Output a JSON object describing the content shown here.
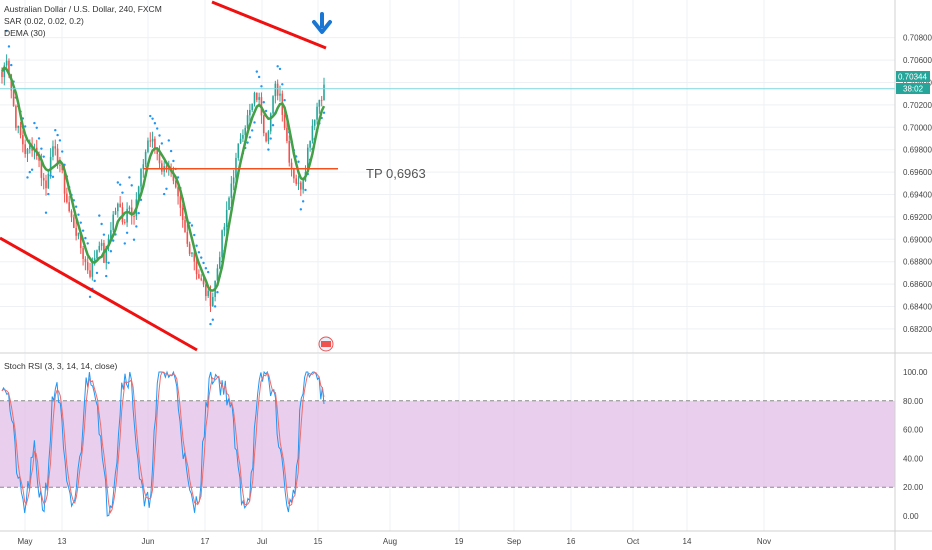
{
  "legend": {
    "symbol": "Australian Dollar / U.S. Dollar, 240, FXCM",
    "sar": "SAR (0.02, 0.02, 0.2)",
    "dema": "DEMA (30)",
    "rsi": "Stoch RSI (3, 3, 14, 14, close)"
  },
  "price_badge": {
    "value": "0.70344",
    "countdown": "38:02"
  },
  "annotation": "TP 0,6963",
  "colors": {
    "up": "#26a69a",
    "down": "#ef5350",
    "sar": "#2196f3",
    "dema": "#43a047",
    "trend": "#f01010",
    "tp_line": "#f4511e",
    "price_line": "#7fd6dc",
    "k": "#2196f3",
    "d": "#ef6c6c",
    "band": "#e1bee7",
    "arrow": "#1976d2"
  },
  "chart_data": [
    {
      "type": "candlestick",
      "yaxis": [
        "0.70800",
        "0.70600",
        "0.70400",
        "0.70200",
        "0.70000",
        "0.69800",
        "0.69600",
        "0.69400",
        "0.69200",
        "0.69000",
        "0.68800",
        "0.68600",
        "0.68400",
        "0.68200"
      ],
      "ylim": [
        0.6811,
        0.7094
      ],
      "xaxis": [
        "May",
        "13",
        "Jun",
        "17",
        "Jul",
        "15",
        "Aug",
        "19",
        "Sep",
        "16",
        "Oct",
        "14",
        "Nov"
      ],
      "price_path": [
        0.7045,
        0.7065,
        0.703,
        0.7,
        0.699,
        0.6975,
        0.6985,
        0.698,
        0.696,
        0.6945,
        0.698,
        0.6975,
        0.6965,
        0.694,
        0.692,
        0.691,
        0.6895,
        0.688,
        0.687,
        0.6885,
        0.69,
        0.688,
        0.6905,
        0.6925,
        0.693,
        0.6915,
        0.6935,
        0.692,
        0.6945,
        0.697,
        0.699,
        0.6985,
        0.6975,
        0.696,
        0.697,
        0.695,
        0.6935,
        0.6915,
        0.6895,
        0.689,
        0.687,
        0.686,
        0.685,
        0.6845,
        0.687,
        0.69,
        0.692,
        0.695,
        0.697,
        0.6995,
        0.7005,
        0.7015,
        0.703,
        0.702,
        0.699,
        0.701,
        0.7035,
        0.703,
        0.7,
        0.697,
        0.6955,
        0.6945,
        0.696,
        0.699,
        0.701,
        0.7025,
        0.7035
      ],
      "tp": 0.6963,
      "current": 0.70344
    },
    {
      "type": "line",
      "yaxis": [
        "100.00",
        "80.00",
        "60.00",
        "40.00",
        "20.00",
        "0.00"
      ],
      "ylim": [
        -4,
        104
      ],
      "band": [
        20,
        80
      ],
      "k_path": [
        95,
        90,
        70,
        40,
        15,
        5,
        25,
        45,
        20,
        5,
        30,
        80,
        95,
        60,
        20,
        5,
        15,
        40,
        85,
        100,
        95,
        70,
        30,
        5,
        15,
        45,
        90,
        100,
        95,
        60,
        25,
        5,
        10,
        50,
        95,
        100,
        100,
        98,
        90,
        60,
        30,
        10,
        5,
        20,
        60,
        95,
        100,
        95,
        90,
        85,
        70,
        40,
        15,
        10,
        20,
        60,
        90,
        100,
        95,
        85,
        60,
        30,
        10,
        5,
        30,
        80,
        100,
        98,
        100,
        95,
        75
      ]
    }
  ]
}
